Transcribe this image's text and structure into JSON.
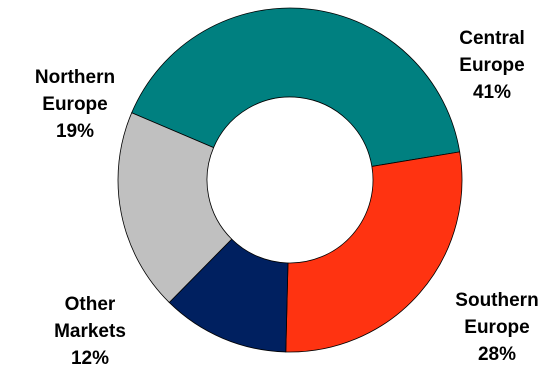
{
  "chart_data": {
    "type": "pie",
    "style": "donut",
    "slices": [
      {
        "name": "Central Europe",
        "label_lines": [
          "Central",
          "Europe",
          "41%"
        ],
        "value": 41,
        "color": "#008080"
      },
      {
        "name": "Southern Europe",
        "label_lines": [
          "Southern",
          "Europe",
          "28%"
        ],
        "value": 28,
        "color": "#ff3311"
      },
      {
        "name": "Other Markets",
        "label_lines": [
          "Other",
          "Markets",
          "12%"
        ],
        "value": 12,
        "color": "#002060"
      },
      {
        "name": "Northern Europe",
        "label_lines": [
          "Northern",
          "Europe",
          "19%"
        ],
        "value": 19,
        "color": "#c0c0c0"
      }
    ],
    "legend": "none"
  }
}
